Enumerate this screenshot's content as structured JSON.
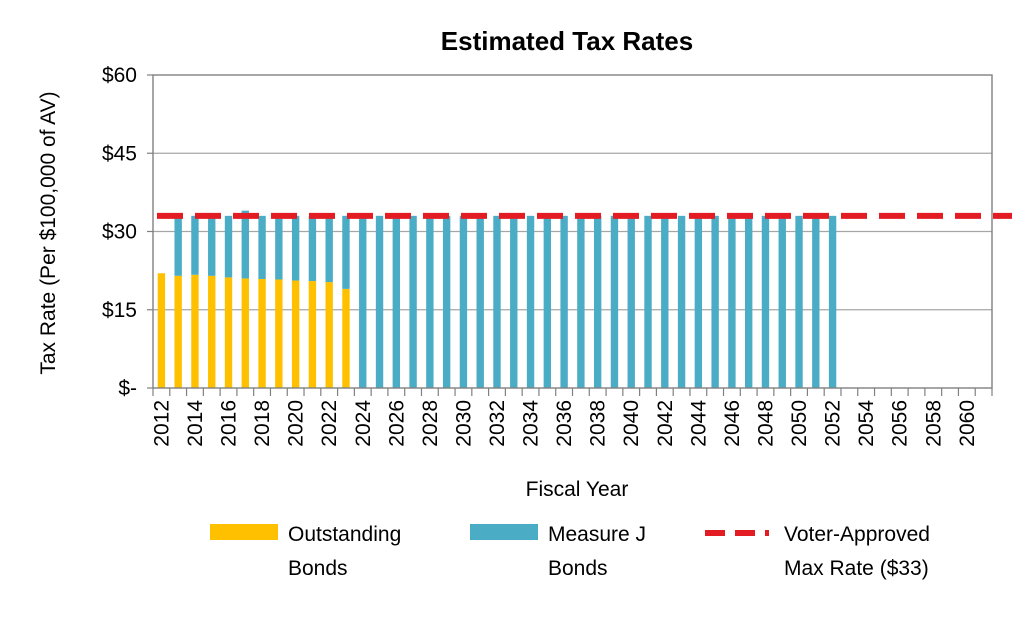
{
  "chart_data": {
    "type": "bar",
    "title": "Estimated Tax Rates",
    "xlabel": "Fiscal Year",
    "ylabel": "Tax Rate (Per $100,000 of AV)",
    "ylim": [
      0,
      60
    ],
    "y_ticks": [
      0,
      15,
      30,
      45,
      60
    ],
    "y_tick_labels": [
      "$-",
      "$15",
      "$30",
      "$45",
      "$60"
    ],
    "x": [
      2012,
      2013,
      2014,
      2015,
      2016,
      2017,
      2018,
      2019,
      2020,
      2021,
      2022,
      2023,
      2024,
      2025,
      2026,
      2027,
      2028,
      2029,
      2030,
      2031,
      2032,
      2033,
      2034,
      2035,
      2036,
      2037,
      2038,
      2039,
      2040,
      2041,
      2042,
      2043,
      2044,
      2045,
      2046,
      2047,
      2048,
      2049,
      2050,
      2051,
      2052,
      2053,
      2054,
      2055,
      2056,
      2057,
      2058,
      2059,
      2060,
      2061
    ],
    "x_tick_labels": [
      "2012",
      "2014",
      "2016",
      "2018",
      "2020",
      "2022",
      "2024",
      "2026",
      "2028",
      "2030",
      "2032",
      "2034",
      "2036",
      "2038",
      "2040",
      "2042",
      "2044",
      "2046",
      "2048",
      "2050",
      "2052",
      "2054",
      "2056",
      "2058",
      "2060"
    ],
    "stacked": true,
    "series": [
      {
        "name": "Outstanding Bonds",
        "color": "#FFC000",
        "values": [
          22,
          21.5,
          21.7,
          21.5,
          21.2,
          21,
          20.9,
          20.8,
          20.6,
          20.5,
          20.3,
          19,
          0,
          0,
          0,
          0,
          0,
          0,
          0,
          0,
          0,
          0,
          0,
          0,
          0,
          0,
          0,
          0,
          0,
          0,
          0,
          0,
          0,
          0,
          0,
          0,
          0,
          0,
          0,
          0,
          0,
          0,
          0,
          0,
          0,
          0,
          0,
          0,
          0,
          0
        ]
      },
      {
        "name": "Measure J Bonds",
        "color": "#4BACC6",
        "values": [
          0,
          11.5,
          11.3,
          11.5,
          11.8,
          13,
          12.1,
          12.2,
          12.4,
          12.5,
          12.7,
          14,
          33,
          33,
          33,
          33,
          33,
          33,
          33,
          33,
          33,
          33,
          33,
          33,
          33,
          33,
          33,
          33,
          33,
          33,
          33,
          33,
          33,
          33,
          33,
          33,
          33,
          33,
          33,
          33,
          33,
          0,
          0,
          0,
          0,
          0,
          0,
          0,
          0,
          0
        ]
      }
    ],
    "reference_line": {
      "name": "Voter-Approved Max Rate ($33)",
      "value": 33,
      "color": "#E31B23",
      "style": "dashed"
    },
    "legend": {
      "placement": "bottom",
      "items": [
        {
          "line1": "Outstanding",
          "line2": "Bonds",
          "color": "#FFC000",
          "kind": "bar"
        },
        {
          "line1": "Measure J",
          "line2": "Bonds",
          "color": "#4BACC6",
          "kind": "bar"
        },
        {
          "line1": "Voter-Approved",
          "line2": "Max Rate ($33)",
          "color": "#E31B23",
          "kind": "dashed-line"
        }
      ]
    },
    "grid": true,
    "grid_color": "#A6A6A6",
    "border_color": "#808080"
  }
}
